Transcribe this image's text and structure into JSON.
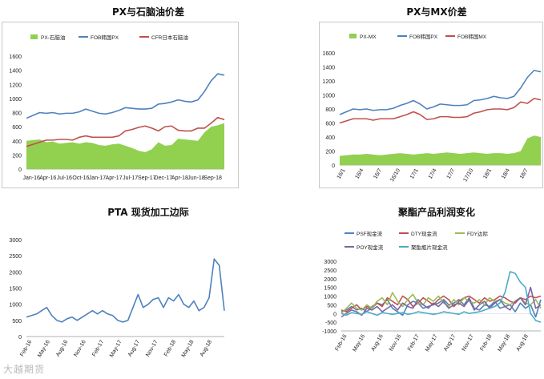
{
  "watermark": "大越期货",
  "chart_data": [
    {
      "type": "line",
      "title": "PX与石脑油价差",
      "ylim": [
        0,
        1600
      ],
      "yticks": [
        0,
        200,
        400,
        600,
        800,
        1000,
        1200,
        1400,
        1600
      ],
      "xticks": [
        "Jan-16",
        "Apr-16",
        "Jul-16",
        "Oct-16",
        "Jan-17",
        "Apr-17",
        "Jul-17",
        "Sep-17",
        "Dec-17",
        "Apr-18",
        "Jun-18",
        "Sep-18"
      ],
      "legend_position": "top",
      "series": [
        {
          "name": "PX-石脑油",
          "kind": "area",
          "color": "#92d050",
          "values": [
            400,
            410,
            420,
            380,
            390,
            360,
            370,
            380,
            360,
            380,
            370,
            340,
            330,
            350,
            360,
            330,
            300,
            260,
            240,
            280,
            380,
            330,
            340,
            430,
            420,
            410,
            400,
            520,
            600,
            620,
            650
          ]
        },
        {
          "name": "FOB韩国PX",
          "kind": "line",
          "color": "#4f81bd",
          "values": [
            720,
            760,
            800,
            790,
            800,
            780,
            790,
            790,
            810,
            850,
            820,
            790,
            780,
            800,
            830,
            870,
            860,
            850,
            850,
            860,
            920,
            930,
            950,
            980,
            960,
            950,
            980,
            1100,
            1250,
            1350,
            1330
          ]
        },
        {
          "name": "CFR日本石脑油",
          "kind": "line",
          "color": "#c0504d",
          "values": [
            320,
            350,
            380,
            410,
            410,
            420,
            420,
            410,
            450,
            470,
            450,
            450,
            450,
            450,
            470,
            540,
            560,
            590,
            610,
            580,
            540,
            600,
            610,
            550,
            540,
            540,
            580,
            580,
            650,
            730,
            700
          ]
        }
      ]
    },
    {
      "type": "line",
      "title": "PX与MX价差",
      "ylim": [
        0,
        1600
      ],
      "yticks": [
        0,
        200,
        400,
        600,
        800,
        1000,
        1200,
        1400,
        1600
      ],
      "xticks": [
        "16/1",
        "16/4",
        "16/7",
        "16/10",
        "17/1",
        "17/4",
        "17/7",
        "17/10",
        "18/1",
        "18/4",
        "18/7"
      ],
      "legend_position": "top",
      "series": [
        {
          "name": "PX-MX",
          "kind": "area",
          "color": "#92d050",
          "values": [
            130,
            140,
            150,
            150,
            160,
            150,
            140,
            150,
            160,
            170,
            160,
            150,
            160,
            170,
            160,
            170,
            180,
            170,
            160,
            170,
            180,
            170,
            160,
            170,
            170,
            160,
            170,
            200,
            380,
            420,
            400
          ]
        },
        {
          "name": "FOB韩国PX",
          "kind": "line",
          "color": "#4f81bd",
          "values": [
            720,
            760,
            800,
            790,
            800,
            780,
            790,
            790,
            810,
            850,
            880,
            920,
            870,
            800,
            830,
            870,
            860,
            850,
            850,
            860,
            920,
            930,
            950,
            980,
            960,
            950,
            980,
            1100,
            1250,
            1350,
            1330
          ]
        },
        {
          "name": "FOB韩国MX",
          "kind": "line",
          "color": "#c0504d",
          "values": [
            600,
            630,
            660,
            660,
            660,
            640,
            660,
            660,
            660,
            690,
            720,
            760,
            720,
            650,
            660,
            690,
            690,
            680,
            680,
            690,
            740,
            760,
            790,
            800,
            800,
            790,
            820,
            900,
            880,
            950,
            930
          ]
        }
      ]
    },
    {
      "type": "line",
      "title": "PTA 现货加工边际",
      "ylim": [
        0,
        3000
      ],
      "yticks": [
        0,
        500,
        1000,
        1500,
        2000,
        2500,
        3000
      ],
      "xticks": [
        "Feb-16",
        "May-16",
        "Aug-16",
        "Nov-16",
        "Feb-17",
        "May-17",
        "Aug-17",
        "Nov-17",
        "Feb-18",
        "May-18",
        "Aug-18"
      ],
      "series": [
        {
          "name": "",
          "kind": "line",
          "color": "#4f81bd",
          "values": [
            600,
            650,
            700,
            800,
            900,
            650,
            500,
            450,
            550,
            600,
            500,
            600,
            700,
            800,
            700,
            800,
            700,
            650,
            500,
            450,
            500,
            900,
            1300,
            900,
            1000,
            1150,
            1200,
            900,
            1200,
            1100,
            1300,
            1000,
            900,
            1100,
            800,
            900,
            1200,
            2400,
            2200,
            800
          ]
        }
      ]
    },
    {
      "type": "line",
      "title": "聚酯产品利润变化",
      "ylim": [
        -1000,
        3000
      ],
      "yticks": [
        -1000,
        -500,
        0,
        500,
        1000,
        1500,
        2000,
        2500,
        3000
      ],
      "xticks": [
        "Feb-16",
        "May-16",
        "Aug-16",
        "Nov-16",
        "Feb-17",
        "May-17",
        "Aug-17",
        "Nov-17",
        "Feb-18",
        "May-18",
        "Aug-18"
      ],
      "legend_position": "top",
      "series": [
        {
          "name": "PSF现金流",
          "kind": "line",
          "color": "#4f81bd",
          "values": [
            100,
            200,
            400,
            200,
            300,
            100,
            400,
            600,
            500,
            800,
            300,
            100,
            -100,
            500,
            700,
            600,
            300,
            400,
            500,
            600,
            800,
            500,
            600,
            800,
            500,
            900,
            300,
            200,
            500,
            400,
            700,
            300,
            400,
            500,
            100,
            600,
            300,
            500,
            -200,
            800
          ]
        },
        {
          "name": "DTY现金流",
          "kind": "line",
          "color": "#c0504d",
          "values": [
            200,
            100,
            300,
            500,
            200,
            400,
            300,
            600,
            400,
            900,
            700,
            500,
            1000,
            800,
            400,
            600,
            900,
            700,
            500,
            800,
            1000,
            800,
            400,
            700,
            900,
            1000,
            800,
            600,
            900,
            700,
            800,
            1000,
            900,
            700,
            600,
            900,
            800,
            1000,
            900,
            1000
          ]
        },
        {
          "name": "FDY边际",
          "kind": "line",
          "color": "#9bbb59",
          "values": [
            0,
            300,
            600,
            300,
            200,
            500,
            300,
            700,
            900,
            500,
            1200,
            700,
            400,
            800,
            1100,
            600,
            500,
            900,
            700,
            1000,
            600,
            400,
            800,
            500,
            900,
            700,
            600,
            800,
            500,
            900,
            700,
            800,
            600,
            500,
            700,
            900,
            600,
            500,
            800,
            300
          ]
        },
        {
          "name": "POY现金流",
          "kind": "line",
          "color": "#8064a2",
          "values": [
            -200,
            0,
            200,
            100,
            -100,
            300,
            200,
            400,
            100,
            300,
            500,
            200,
            600,
            400,
            300,
            800,
            500,
            300,
            600,
            400,
            700,
            300,
            500,
            600,
            400,
            800,
            200,
            500,
            700,
            300,
            600,
            800,
            400,
            200,
            700,
            900,
            500,
            1500,
            300,
            500
          ]
        },
        {
          "name": "聚酯瓶片现金流",
          "kind": "line",
          "color": "#4bacc6",
          "values": [
            0,
            -100,
            50,
            0,
            -50,
            100,
            0,
            -100,
            50,
            0,
            -50,
            0,
            50,
            -50,
            0,
            100,
            50,
            0,
            -50,
            0,
            100,
            50,
            0,
            -50,
            100,
            0,
            50,
            100,
            200,
            300,
            400,
            600,
            1200,
            2400,
            2300,
            1800,
            1500,
            0,
            -400,
            -500
          ]
        }
      ]
    }
  ]
}
